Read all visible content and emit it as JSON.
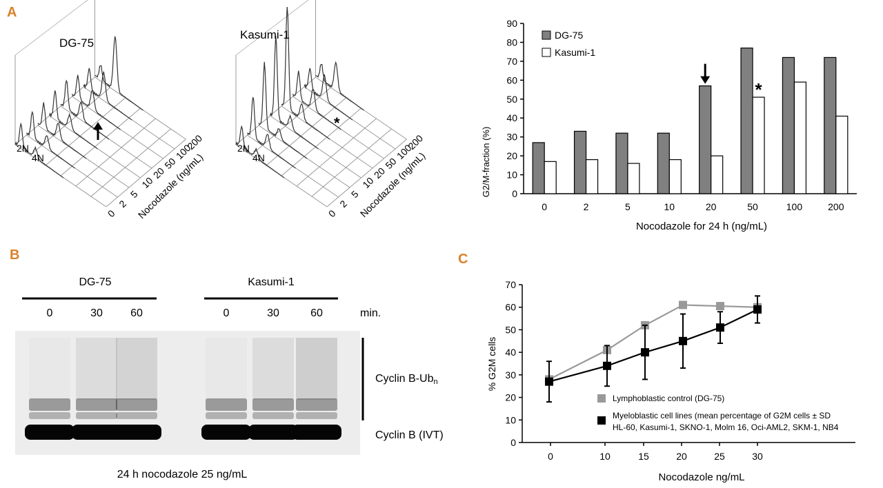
{
  "panel_labels": {
    "a": "A",
    "b": "B",
    "c": "C"
  },
  "panel_a": {
    "left_plot": {
      "title": "DG-75",
      "ploidy": [
        "2N",
        "4N"
      ],
      "ticks": [
        "0",
        "2",
        "5",
        "10",
        "20",
        "50",
        "100",
        "200"
      ],
      "axis_label": "Nocodazole (ng/mL)",
      "marker": "arrow"
    },
    "right_plot": {
      "title": "Kasumi-1",
      "ploidy": [
        "2N",
        "4N"
      ],
      "ticks": [
        "0",
        "2",
        "5",
        "10",
        "20",
        "50",
        "100",
        "200"
      ],
      "axis_label": "Nocodazole (ng/mL)",
      "marker": "*"
    }
  },
  "panel_b": {
    "group1": "DG-75",
    "group2": "Kasumi-1",
    "times": [
      "0",
      "30",
      "60"
    ],
    "time_unit": "min.",
    "band_ub_label": "Cyclin B-Ub",
    "band_ub_sub": "n",
    "band_label": "Cyclin B (IVT)",
    "caption": "24 h nocodazole 25 ng/mL"
  },
  "chart_data": [
    {
      "type": "bar",
      "title": "",
      "categories": [
        "0",
        "2",
        "5",
        "10",
        "20",
        "50",
        "100",
        "200"
      ],
      "series": [
        {
          "name": "DG-75",
          "color": "#808080",
          "values": [
            27,
            33,
            32,
            32,
            57,
            77,
            72,
            72
          ]
        },
        {
          "name": "Kasumi-1",
          "color": "#ffffff",
          "values": [
            17,
            18,
            16,
            18,
            20,
            51,
            59,
            41
          ]
        }
      ],
      "xlabel": "Nocodazole for 24 h (ng/mL)",
      "ylabel": "G2/M-fraction (%)",
      "ylim": [
        0,
        90
      ],
      "yticks": [
        0,
        10,
        20,
        30,
        40,
        50,
        60,
        70,
        80,
        90
      ],
      "annotations": [
        {
          "category": "20",
          "series": "DG-75",
          "mark": "arrow"
        },
        {
          "category": "50",
          "series": "Kasumi-1",
          "mark": "*"
        }
      ],
      "legend_position": "top-left"
    },
    {
      "type": "line",
      "title": "",
      "x": [
        "0",
        "10",
        "15",
        "20",
        "25",
        "30"
      ],
      "series": [
        {
          "name": "Lymphoblastic control (DG-75)",
          "color": "#999999",
          "values": [
            28,
            41,
            52,
            61,
            60.5,
            60
          ]
        },
        {
          "name": "Myeloblastic cell lines (mean percentage of G2M cells ± SD",
          "name2": "HL-60, Kasumi-1, SKNO-1, Molm 16, Oci-AML2, SKM-1, NB4",
          "color": "#000000",
          "values": [
            27,
            34,
            40,
            45,
            51,
            59
          ],
          "errors": [
            9,
            9,
            12,
            12,
            7,
            6
          ]
        }
      ],
      "xlabel": "Nocodazole ng/mL",
      "ylabel": "% G2M cells",
      "ylim": [
        0,
        70
      ],
      "yticks": [
        0,
        10,
        20,
        30,
        40,
        50,
        60,
        70
      ],
      "legend_position": "bottom-right"
    }
  ]
}
